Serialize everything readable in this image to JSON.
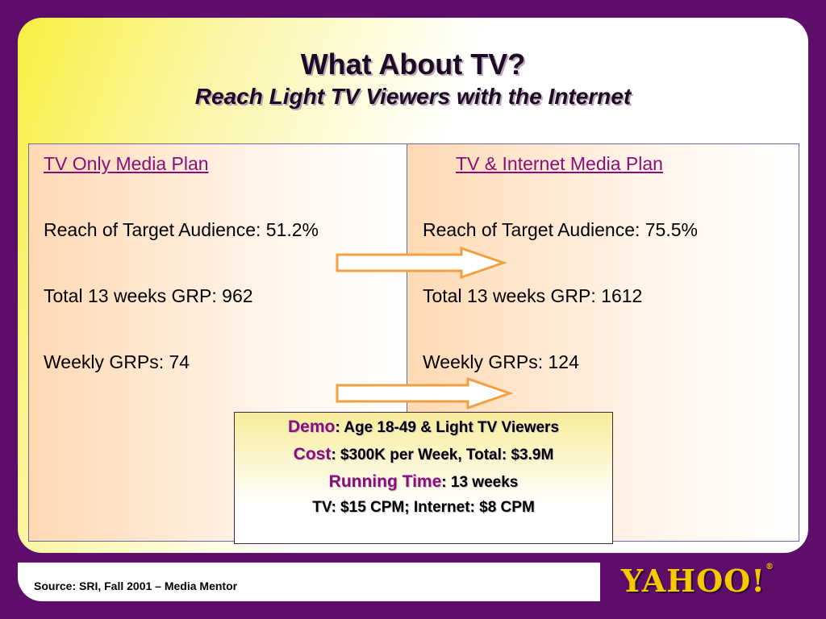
{
  "slide": {
    "title": "What About TV?",
    "subtitle": "Reach Light TV Viewers with the Internet"
  },
  "left_plan": {
    "heading": "TV Only Media Plan",
    "reach": "Reach of Target Audience: 51.2%",
    "grp_total": "Total 13 weeks GRP: 962",
    "grp_weekly": "Weekly GRPs: 74"
  },
  "right_plan": {
    "heading": "TV & Internet Media Plan",
    "reach": "Reach of Target Audience: 75.5%",
    "grp_total": "Total 13 weeks GRP: 1612",
    "grp_weekly": "Weekly GRPs: 124"
  },
  "info": {
    "demo_key": "Demo",
    "demo_value": ": Age 18-49 & Light TV Viewers",
    "cost_key": "Cost",
    "cost_value": ": $300K per Week, Total: $3.9M",
    "time_key": "Running Time",
    "time_value": ": 13 weeks",
    "cpm": "TV: $15 CPM; Internet: $8 CPM"
  },
  "footer": {
    "source": "Source: SRI, Fall 2001 – Media Mentor",
    "logo_text": "YAHOO!"
  },
  "colors": {
    "background": "#5e0e6a",
    "heading": "#8a0e7a",
    "arrow": "#f0a040",
    "logo": "#f5c800"
  }
}
